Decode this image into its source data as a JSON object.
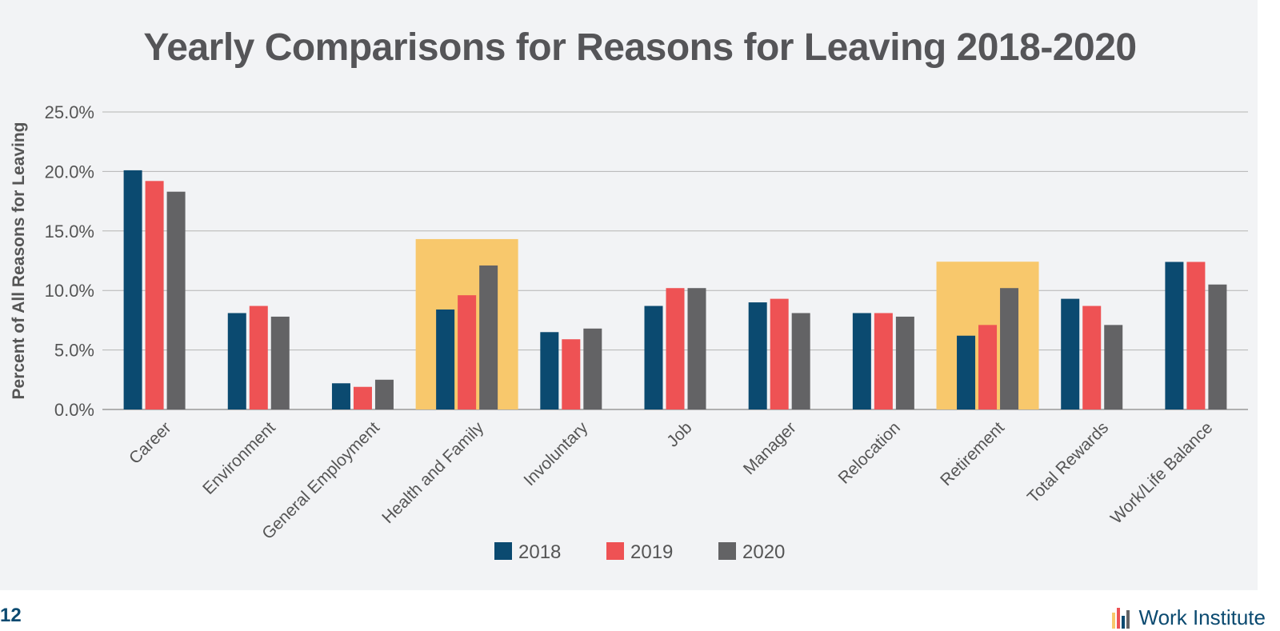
{
  "page": {
    "number": "12",
    "brand": "Work Institute"
  },
  "chart_data": {
    "type": "bar",
    "title": "Yearly Comparisons for Reasons for Leaving 2018-2020",
    "xlabel": "",
    "ylabel": "Percent of All Reasons for Leaving",
    "ylim": [
      0,
      25
    ],
    "yticks": [
      "0.0%",
      "5.0%",
      "10.0%",
      "15.0%",
      "20.0%",
      "25.0%"
    ],
    "grid": true,
    "legend_position": "bottom",
    "categories": [
      "Career",
      "Environment",
      "General Employment",
      "Health and Family",
      "Involuntary",
      "Job",
      "Manager",
      "Relocation",
      "Retirement",
      "Total Rewards",
      "Work/Life Balance"
    ],
    "series": [
      {
        "name": "2018",
        "color": "#0b4a70",
        "values": [
          20.1,
          8.1,
          2.2,
          8.4,
          6.5,
          8.7,
          9.0,
          8.1,
          6.2,
          9.3,
          12.4
        ]
      },
      {
        "name": "2019",
        "color": "#ee5254",
        "values": [
          19.2,
          8.7,
          1.9,
          9.6,
          5.9,
          10.2,
          9.3,
          8.1,
          7.1,
          8.7,
          12.4
        ]
      },
      {
        "name": "2020",
        "color": "#636365",
        "values": [
          18.3,
          7.8,
          2.5,
          12.1,
          6.8,
          10.2,
          8.1,
          7.8,
          10.2,
          7.1,
          10.5
        ]
      }
    ],
    "highlights": [
      {
        "category": "Health and Family",
        "color": "#f8c86c"
      },
      {
        "category": "Retirement",
        "color": "#f8c86c"
      }
    ]
  }
}
